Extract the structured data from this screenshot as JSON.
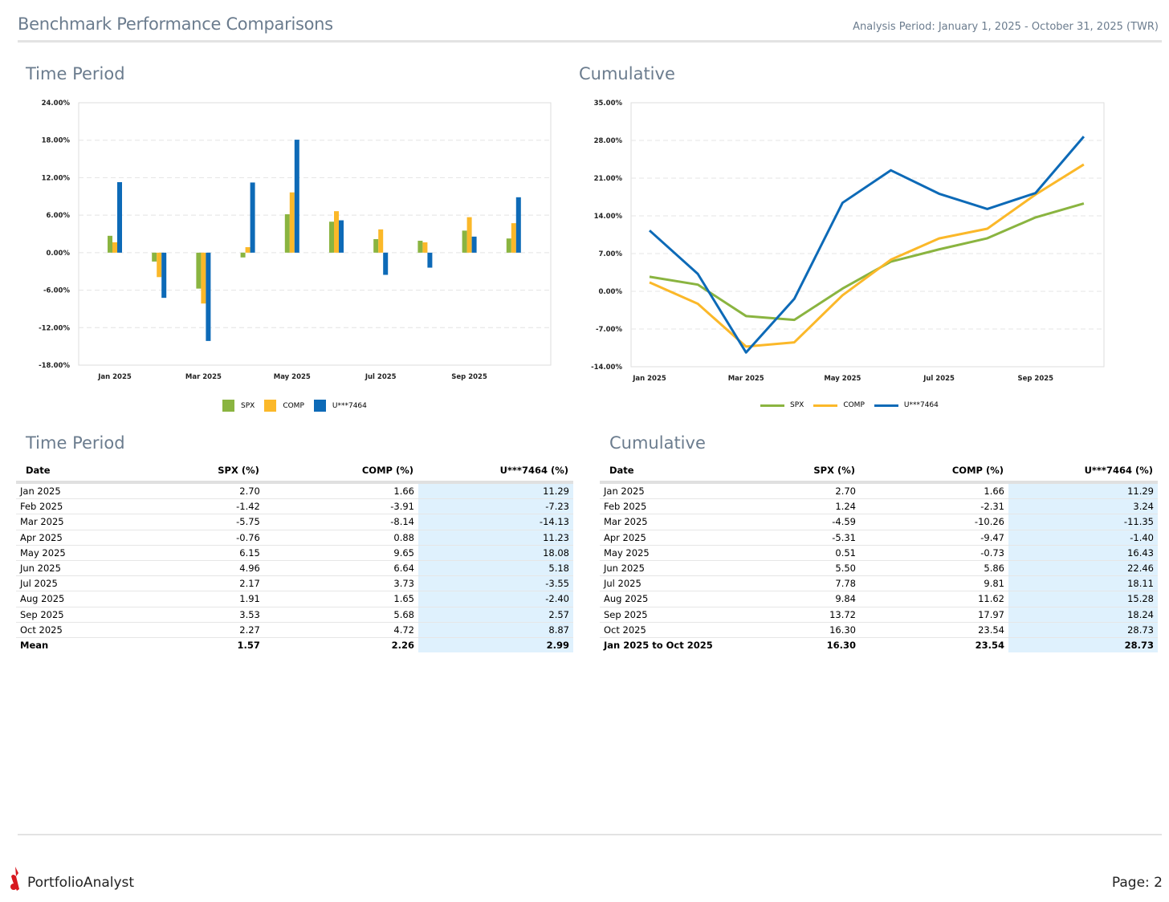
{
  "header": {
    "title": "Benchmark Performance Comparisons",
    "period": "Analysis Period: January 1, 2025 - October 31, 2025 (TWR)"
  },
  "colors": {
    "spx": "#8ab440",
    "comp": "#fbb829",
    "acct": "#0d6ab7",
    "highlight": "#dff1fd",
    "title": "#6b7c8e"
  },
  "sections": {
    "tp_chart_title": "Time Period",
    "cum_chart_title": "Cumulative",
    "tp_table_title": "Time Period",
    "cum_table_title": "Cumulative"
  },
  "chart_data": [
    {
      "type": "bar",
      "title": "Time Period",
      "categories": [
        "Jan 2025",
        "Feb 2025",
        "Mar 2025",
        "Apr 2025",
        "May 2025",
        "Jun 2025",
        "Jul 2025",
        "Aug 2025",
        "Sep 2025",
        "Oct 2025"
      ],
      "x_tick_labels": [
        "Jan 2025",
        "",
        "Mar 2025",
        "",
        "May 2025",
        "",
        "Jul 2025",
        "",
        "Sep 2025",
        ""
      ],
      "y_ticks": [
        "24.00%",
        "18.00%",
        "12.00%",
        "6.00%",
        "0.00%",
        "-6.00%",
        "-12.00%",
        "-18.00%"
      ],
      "ylim": [
        -18,
        24
      ],
      "grid": true,
      "legend": "bottom",
      "series": [
        {
          "name": "SPX",
          "color": "#8ab440",
          "values": [
            2.7,
            -1.42,
            -5.75,
            -0.76,
            6.15,
            4.96,
            2.17,
            1.91,
            3.53,
            2.27
          ]
        },
        {
          "name": "COMP",
          "color": "#fbb829",
          "values": [
            1.66,
            -3.91,
            -8.14,
            0.88,
            9.65,
            6.64,
            3.73,
            1.65,
            5.68,
            4.72
          ]
        },
        {
          "name": "U***7464",
          "color": "#0d6ab7",
          "values": [
            11.29,
            -7.23,
            -14.13,
            11.23,
            18.08,
            5.18,
            -3.55,
            -2.4,
            2.57,
            8.87
          ]
        }
      ]
    },
    {
      "type": "line",
      "title": "Cumulative",
      "categories": [
        "Jan 2025",
        "Feb 2025",
        "Mar 2025",
        "Apr 2025",
        "May 2025",
        "Jun 2025",
        "Jul 2025",
        "Aug 2025",
        "Sep 2025",
        "Oct 2025"
      ],
      "x_tick_labels": [
        "Jan 2025",
        "",
        "Mar 2025",
        "",
        "May 2025",
        "",
        "Jul 2025",
        "",
        "Sep 2025",
        ""
      ],
      "y_ticks": [
        "35.00%",
        "28.00%",
        "21.00%",
        "14.00%",
        "7.00%",
        "0.00%",
        "-7.00%",
        "-14.00%"
      ],
      "ylim": [
        -14,
        35
      ],
      "grid": true,
      "legend": "bottom",
      "series": [
        {
          "name": "SPX",
          "color": "#8ab440",
          "values": [
            2.7,
            1.24,
            -4.59,
            -5.31,
            0.51,
            5.5,
            7.78,
            9.84,
            13.72,
            16.3
          ]
        },
        {
          "name": "COMP",
          "color": "#fbb829",
          "values": [
            1.66,
            -2.31,
            -10.26,
            -9.47,
            -0.73,
            5.86,
            9.81,
            11.62,
            17.97,
            23.54
          ]
        },
        {
          "name": "U***7464",
          "color": "#0d6ab7",
          "values": [
            11.29,
            3.24,
            -11.35,
            -1.4,
            16.43,
            22.46,
            18.11,
            15.28,
            18.24,
            28.73
          ]
        }
      ]
    }
  ],
  "tables": {
    "time_period": {
      "headers": [
        "Date",
        "SPX (%)",
        "COMP (%)",
        "U***7464 (%)"
      ],
      "rows": [
        [
          "Jan 2025",
          "2.70",
          "1.66",
          "11.29"
        ],
        [
          "Feb 2025",
          "-1.42",
          "-3.91",
          "-7.23"
        ],
        [
          "Mar 2025",
          "-5.75",
          "-8.14",
          "-14.13"
        ],
        [
          "Apr 2025",
          "-0.76",
          "0.88",
          "11.23"
        ],
        [
          "May 2025",
          "6.15",
          "9.65",
          "18.08"
        ],
        [
          "Jun 2025",
          "4.96",
          "6.64",
          "5.18"
        ],
        [
          "Jul 2025",
          "2.17",
          "3.73",
          "-3.55"
        ],
        [
          "Aug 2025",
          "1.91",
          "1.65",
          "-2.40"
        ],
        [
          "Sep 2025",
          "3.53",
          "5.68",
          "2.57"
        ],
        [
          "Oct 2025",
          "2.27",
          "4.72",
          "8.87"
        ]
      ],
      "summary": [
        "Mean",
        "1.57",
        "2.26",
        "2.99"
      ]
    },
    "cumulative": {
      "headers": [
        "Date",
        "SPX (%)",
        "COMP (%)",
        "U***7464 (%)"
      ],
      "rows": [
        [
          "Jan 2025",
          "2.70",
          "1.66",
          "11.29"
        ],
        [
          "Feb 2025",
          "1.24",
          "-2.31",
          "3.24"
        ],
        [
          "Mar 2025",
          "-4.59",
          "-10.26",
          "-11.35"
        ],
        [
          "Apr 2025",
          "-5.31",
          "-9.47",
          "-1.40"
        ],
        [
          "May 2025",
          "0.51",
          "-0.73",
          "16.43"
        ],
        [
          "Jun 2025",
          "5.50",
          "5.86",
          "22.46"
        ],
        [
          "Jul 2025",
          "7.78",
          "9.81",
          "18.11"
        ],
        [
          "Aug 2025",
          "9.84",
          "11.62",
          "15.28"
        ],
        [
          "Sep 2025",
          "13.72",
          "17.97",
          "18.24"
        ],
        [
          "Oct 2025",
          "16.30",
          "23.54",
          "28.73"
        ]
      ],
      "summary": [
        "Jan 2025 to Oct 2025",
        "16.30",
        "23.54",
        "28.73"
      ]
    }
  },
  "footer": {
    "brand": "PortfolioAnalyst",
    "logo_icon": "portfolioanalyst-logo-icon",
    "page": "Page: 2"
  }
}
